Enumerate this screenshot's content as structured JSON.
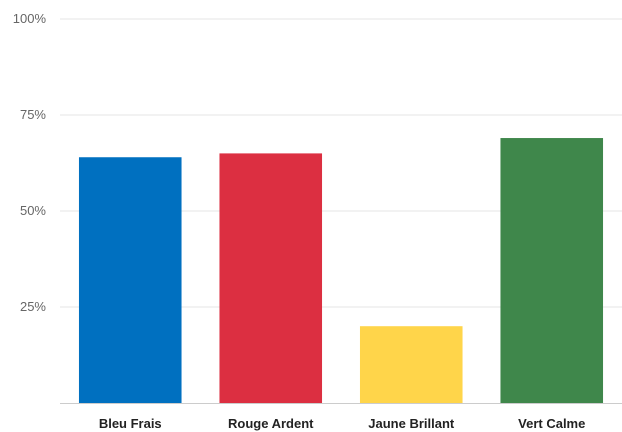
{
  "chart_data": {
    "type": "bar",
    "categories": [
      "Bleu Frais",
      "Rouge Ardent",
      "Jaune Brillant",
      "Vert Calme"
    ],
    "values": [
      64,
      65,
      20,
      69
    ],
    "colors": [
      "#0070c0",
      "#dc2f41",
      "#ffd54a",
      "#3f874b"
    ],
    "ylim": [
      0,
      100
    ],
    "yticks": [
      25,
      50,
      75,
      100
    ],
    "ytick_labels": [
      "25%",
      "50%",
      "75%",
      "100%"
    ],
    "grid": true,
    "legend": "none"
  }
}
